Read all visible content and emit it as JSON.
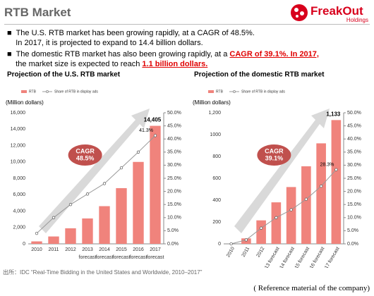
{
  "header": {
    "title": "RTB Market",
    "logo": "FreakOut",
    "logo_sub": "Holdings"
  },
  "bullets": [
    [
      "The U.S. RTB market has been growing rapidly, at a CAGR of 48.5%.",
      "In 2017, it is projected to expand to 14.4 billion dollars."
    ],
    [
      "The domestic RTB market has also been growing rapidly, at a ",
      "CAGR of 39.1%. In 2017,",
      "the market size is expected to reach ",
      "1.1 billion dollars."
    ]
  ],
  "chart_data": [
    {
      "type": "bar",
      "title": "Projection of the U.S. RTB market",
      "y_label": "(Million dollars)",
      "categories": [
        "2010",
        "2011",
        "2012",
        "2013",
        "2014",
        "2015",
        "2016",
        "2017"
      ],
      "category_notes": [
        null,
        null,
        null,
        "forecast",
        "forecast",
        "forecast",
        "forecast",
        "forecast"
      ],
      "series": [
        {
          "name": "RTB",
          "color": "#f0837c",
          "values": [
            300,
            900,
            1900,
            3100,
            4600,
            6800,
            10000,
            14405
          ],
          "value_labels": [
            null,
            null,
            null,
            null,
            null,
            null,
            null,
            "14,405"
          ]
        },
        {
          "name": "Share of RTB in display ads",
          "color": "#999999",
          "axis": "y2",
          "values": [
            4,
            10,
            15,
            19,
            23,
            29,
            35,
            41.3
          ],
          "value_labels": [
            null,
            null,
            null,
            null,
            null,
            null,
            null,
            "41.3%"
          ]
        }
      ],
      "ylim": [
        0,
        16000
      ],
      "yticks": [
        0,
        {
          "value": 2000,
          "label": "2,000"
        },
        {
          "value": 4000,
          "label": "4,000"
        },
        {
          "value": 6000,
          "label": "6,000"
        },
        {
          "value": 8000,
          "label": "8,000"
        },
        {
          "value": 10000,
          "label": "10,000"
        },
        {
          "value": 12000,
          "label": "12,000"
        },
        {
          "value": 14000,
          "label": "14,000"
        },
        {
          "value": 16000,
          "label": "16,000"
        }
      ],
      "y2lim": [
        0,
        50
      ],
      "y2ticks": [
        {
          "value": 0,
          "label": "0.0%"
        },
        {
          "value": 5,
          "label": "5.0%"
        },
        {
          "value": 10,
          "label": "10.0%"
        },
        {
          "value": 15,
          "label": "15.0%"
        },
        {
          "value": 20,
          "label": "20.0%"
        },
        {
          "value": 25,
          "label": "25.0%"
        },
        {
          "value": 30,
          "label": "30.0%"
        },
        {
          "value": 35,
          "label": "35.0%"
        },
        {
          "value": 40,
          "label": "40.0%"
        },
        {
          "value": 45,
          "label": "45.0%"
        },
        {
          "value": 50,
          "label": "50.0%"
        }
      ],
      "annotation": [
        "CAGR",
        "48.5%"
      ]
    },
    {
      "type": "bar",
      "title": "Projection of the domestic RTB market",
      "y_label": "(Million dollars)",
      "categories": [
        "2010",
        "2011",
        "2012",
        "2013 forecast",
        "2014 forecast",
        "2015 forecast",
        "2016 forecast",
        "2017 forecast"
      ],
      "series": [
        {
          "name": "RTB",
          "color": "#f0837c",
          "values": [
            null,
            50,
            215,
            380,
            520,
            710,
            920,
            1133
          ],
          "value_labels": [
            null,
            null,
            null,
            null,
            null,
            null,
            null,
            "1,133"
          ]
        },
        {
          "name": "Share of RTB in display ads",
          "color": "#999999",
          "axis": "y2",
          "values": [
            0,
            1.5,
            6,
            10,
            13,
            17,
            22,
            28.3
          ],
          "value_labels": [
            null,
            null,
            null,
            null,
            null,
            null,
            null,
            "28.3%"
          ]
        }
      ],
      "ylim": [
        0,
        1200
      ],
      "yticks": [
        0,
        200,
        400,
        600,
        800,
        1000,
        {
          "value": 1200,
          "label": "1,200"
        }
      ],
      "y2lim": [
        0,
        50
      ],
      "y2ticks": [
        {
          "value": 0,
          "label": "0.0%"
        },
        {
          "value": 5,
          "label": "5.0%"
        },
        {
          "value": 10,
          "label": "10.0%"
        },
        {
          "value": 15,
          "label": "15.0%"
        },
        {
          "value": 20,
          "label": "20.0%"
        },
        {
          "value": 25,
          "label": "25.0%"
        },
        {
          "value": 30,
          "label": "30.0%"
        },
        {
          "value": 35,
          "label": "35.0%"
        },
        {
          "value": 40,
          "label": "40.0%"
        },
        {
          "value": 45,
          "label": "45.0%"
        },
        {
          "value": 50,
          "label": "50.0%"
        }
      ],
      "annotation": [
        "CAGR",
        "39.1%"
      ]
    }
  ],
  "source": "出所：IDC “Real-Time Bidding in the United States and Worldwide, 2010–2017”",
  "reference": "( Reference material of the company)"
}
